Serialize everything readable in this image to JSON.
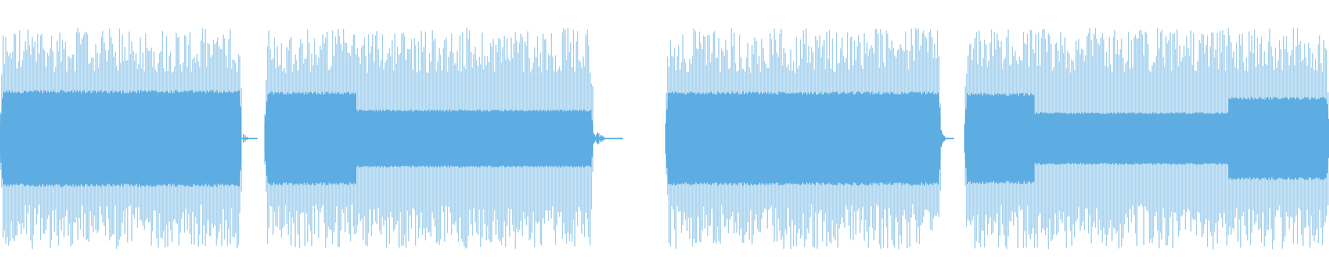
{
  "waveform": {
    "color": "#5dade2"
  }
}
